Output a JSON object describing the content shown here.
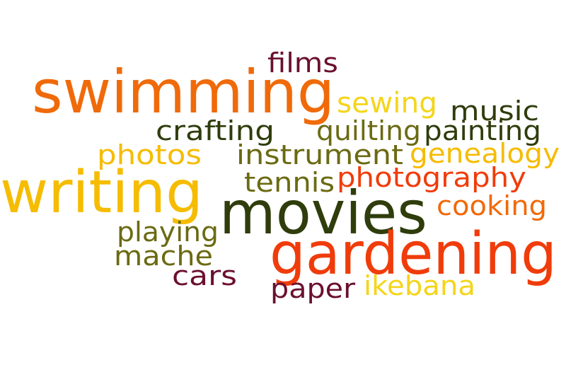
{
  "colors": {
    "orange": "#f06a0a",
    "gold": "#f5bc00",
    "yellow": "#f4d51a",
    "maroon": "#6b1030",
    "olive": "#6b6a12",
    "darkgreen": "#2f3d0c",
    "red": "#f03c0a"
  },
  "words": [
    {
      "id": "films",
      "text": "films",
      "color": "maroon"
    },
    {
      "id": "swimming",
      "text": "swimming",
      "color": "orange"
    },
    {
      "id": "sewing",
      "text": "sewing",
      "color": "yellow"
    },
    {
      "id": "music",
      "text": "music",
      "color": "darkgreen"
    },
    {
      "id": "crafting",
      "text": "crafting",
      "color": "darkgreen"
    },
    {
      "id": "quilting",
      "text": "quilting",
      "color": "olive"
    },
    {
      "id": "painting",
      "text": "painting",
      "color": "darkgreen"
    },
    {
      "id": "photos",
      "text": "photos",
      "color": "gold"
    },
    {
      "id": "instrument",
      "text": "instrument",
      "color": "olive"
    },
    {
      "id": "genealogy",
      "text": "genealogy",
      "color": "gold"
    },
    {
      "id": "writing",
      "text": "writing",
      "color": "gold"
    },
    {
      "id": "tennis",
      "text": "tennis",
      "color": "olive"
    },
    {
      "id": "photography",
      "text": "photography",
      "color": "red"
    },
    {
      "id": "movies",
      "text": "movies",
      "color": "darkgreen"
    },
    {
      "id": "cooking",
      "text": "cooking",
      "color": "orange"
    },
    {
      "id": "playing",
      "text": "playing",
      "color": "olive"
    },
    {
      "id": "gardening",
      "text": "gardening",
      "color": "red"
    },
    {
      "id": "mache",
      "text": "mache",
      "color": "olive"
    },
    {
      "id": "cars",
      "text": "cars",
      "color": "maroon"
    },
    {
      "id": "paper",
      "text": "paper",
      "color": "maroon"
    },
    {
      "id": "ikebana",
      "text": "ikebana",
      "color": "yellow"
    }
  ]
}
